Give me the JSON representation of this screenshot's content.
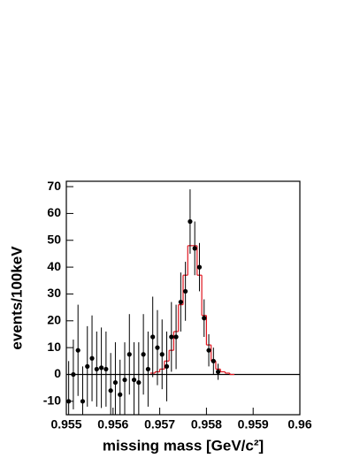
{
  "chart_data": {
    "type": "errorbar",
    "xlabel": "missing mass [GeV/c²]",
    "ylabel": "events/100keV",
    "x": [
      0.95505,
      0.95515,
      0.95525,
      0.95535,
      0.95545,
      0.95555,
      0.95565,
      0.95575,
      0.95585,
      0.95595,
      0.95605,
      0.95615,
      0.95625,
      0.95635,
      0.95645,
      0.95655,
      0.95665,
      0.95675,
      0.95685,
      0.95695,
      0.95705,
      0.95715,
      0.95725,
      0.95735,
      0.95745,
      0.95755,
      0.95765,
      0.95775,
      0.95785,
      0.95795,
      0.95805,
      0.95815,
      0.95825
    ],
    "values": [
      -10,
      0,
      9,
      -10,
      3,
      6,
      2,
      2.5,
      2,
      -6,
      -3,
      -7.5,
      -2,
      7.5,
      -2,
      -3,
      7.5,
      2,
      14,
      10,
      7.5,
      3,
      14,
      14,
      27,
      31,
      57,
      47,
      40,
      21,
      9,
      5,
      1
    ],
    "errors": [
      15,
      13,
      17,
      13,
      15,
      16,
      14,
      15,
      14,
      14,
      15,
      13,
      14,
      15,
      14,
      15,
      15,
      14,
      15,
      14,
      13,
      13,
      13,
      12,
      11,
      11,
      12,
      10,
      9,
      7,
      6,
      5,
      3
    ],
    "color": "#000000",
    "fit": {
      "type": "histogram",
      "color": "#e0141e",
      "bins": [
        0.9568,
        0.9569,
        0.957,
        0.9571,
        0.9572,
        0.9573,
        0.9574,
        0.9575,
        0.9576,
        0.9577,
        0.9578,
        0.9579,
        0.958,
        0.9581,
        0.9582,
        0.9583,
        0.9584,
        0.9585,
        0.9586
      ],
      "counts": [
        0.5,
        1,
        2,
        5,
        9,
        16,
        26,
        37,
        48,
        48,
        37,
        22,
        11,
        5,
        2,
        1,
        0.5,
        0
      ]
    },
    "zero_line": true,
    "xlim": [
      0.955,
      0.96
    ],
    "ylim": [
      -15,
      72
    ],
    "xticks": [
      0.955,
      0.956,
      0.957,
      0.958,
      0.959,
      0.96
    ],
    "yticks": [
      -10,
      0,
      10,
      20,
      30,
      40,
      50,
      60,
      70
    ]
  }
}
